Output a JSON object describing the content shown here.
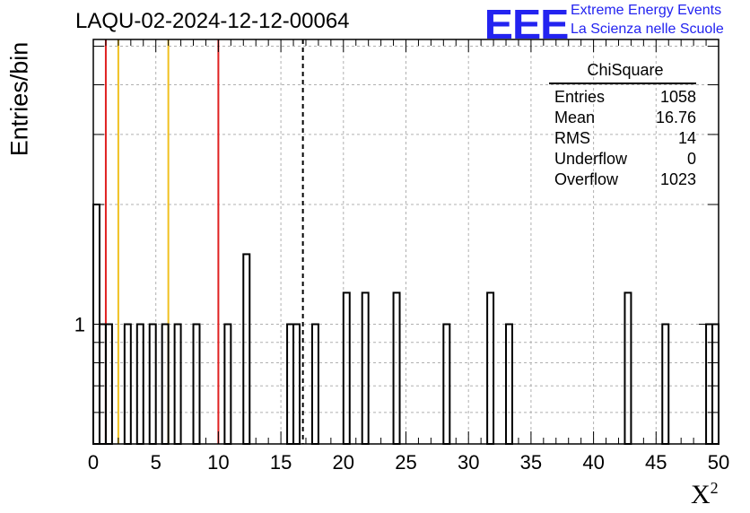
{
  "header": {
    "title": "LAQU-02-2024-12-12-00064",
    "logo_text": "EEE",
    "logo_line1": "Extreme Energy Events",
    "logo_line2": "La Scienza nelle Scuole",
    "logo_color": "#2323f0"
  },
  "stats_box": {
    "name": "ChiSquare",
    "rows": [
      {
        "label": "Entries",
        "value": "1058"
      },
      {
        "label": "Mean",
        "value": "16.76"
      },
      {
        "label": "RMS",
        "value": "14"
      },
      {
        "label": "Underflow",
        "value": "0"
      },
      {
        "label": "Overflow",
        "value": "1023"
      }
    ]
  },
  "chart_data": {
    "type": "bar",
    "title": "LAQU-02-2024-12-12-00064",
    "xlabel": "X",
    "xlabel_superscript": "2",
    "ylabel": "Entries/bin",
    "xlim": [
      0,
      50
    ],
    "ylim": [
      0.5,
      5.2
    ],
    "ylog": true,
    "grid": true,
    "bin_width": 0.5,
    "bins": [
      {
        "x": 0.0,
        "y": 2
      },
      {
        "x": 0.5,
        "y": 1
      },
      {
        "x": 1.0,
        "y": 1
      },
      {
        "x": 2.5,
        "y": 1
      },
      {
        "x": 3.5,
        "y": 1
      },
      {
        "x": 4.5,
        "y": 1
      },
      {
        "x": 5.5,
        "y": 1
      },
      {
        "x": 6.5,
        "y": 1
      },
      {
        "x": 8.0,
        "y": 1
      },
      {
        "x": 10.5,
        "y": 1
      },
      {
        "x": 12.0,
        "y": 1.5
      },
      {
        "x": 15.5,
        "y": 1
      },
      {
        "x": 16.0,
        "y": 1
      },
      {
        "x": 17.5,
        "y": 1
      },
      {
        "x": 20.0,
        "y": 1.2
      },
      {
        "x": 21.5,
        "y": 1.2
      },
      {
        "x": 24.0,
        "y": 1.2
      },
      {
        "x": 28.0,
        "y": 1
      },
      {
        "x": 31.5,
        "y": 1.2
      },
      {
        "x": 33.0,
        "y": 1
      },
      {
        "x": 42.5,
        "y": 1.2
      },
      {
        "x": 45.5,
        "y": 1
      },
      {
        "x": 49.0,
        "y": 1
      },
      {
        "x": 49.5,
        "y": 1
      }
    ],
    "xticks": [
      "0",
      "5",
      "10",
      "15",
      "20",
      "25",
      "30",
      "35",
      "40",
      "45",
      "50"
    ],
    "yticks": [
      "1"
    ],
    "vlines": [
      {
        "x": 1,
        "color": "#e02020",
        "style": "solid"
      },
      {
        "x": 2,
        "color": "#f0c020",
        "style": "solid"
      },
      {
        "x": 6,
        "color": "#f0c020",
        "style": "solid"
      },
      {
        "x": 10,
        "color": "#e02020",
        "style": "solid"
      },
      {
        "x": 16.76,
        "color": "#000000",
        "style": "dashed"
      }
    ]
  }
}
